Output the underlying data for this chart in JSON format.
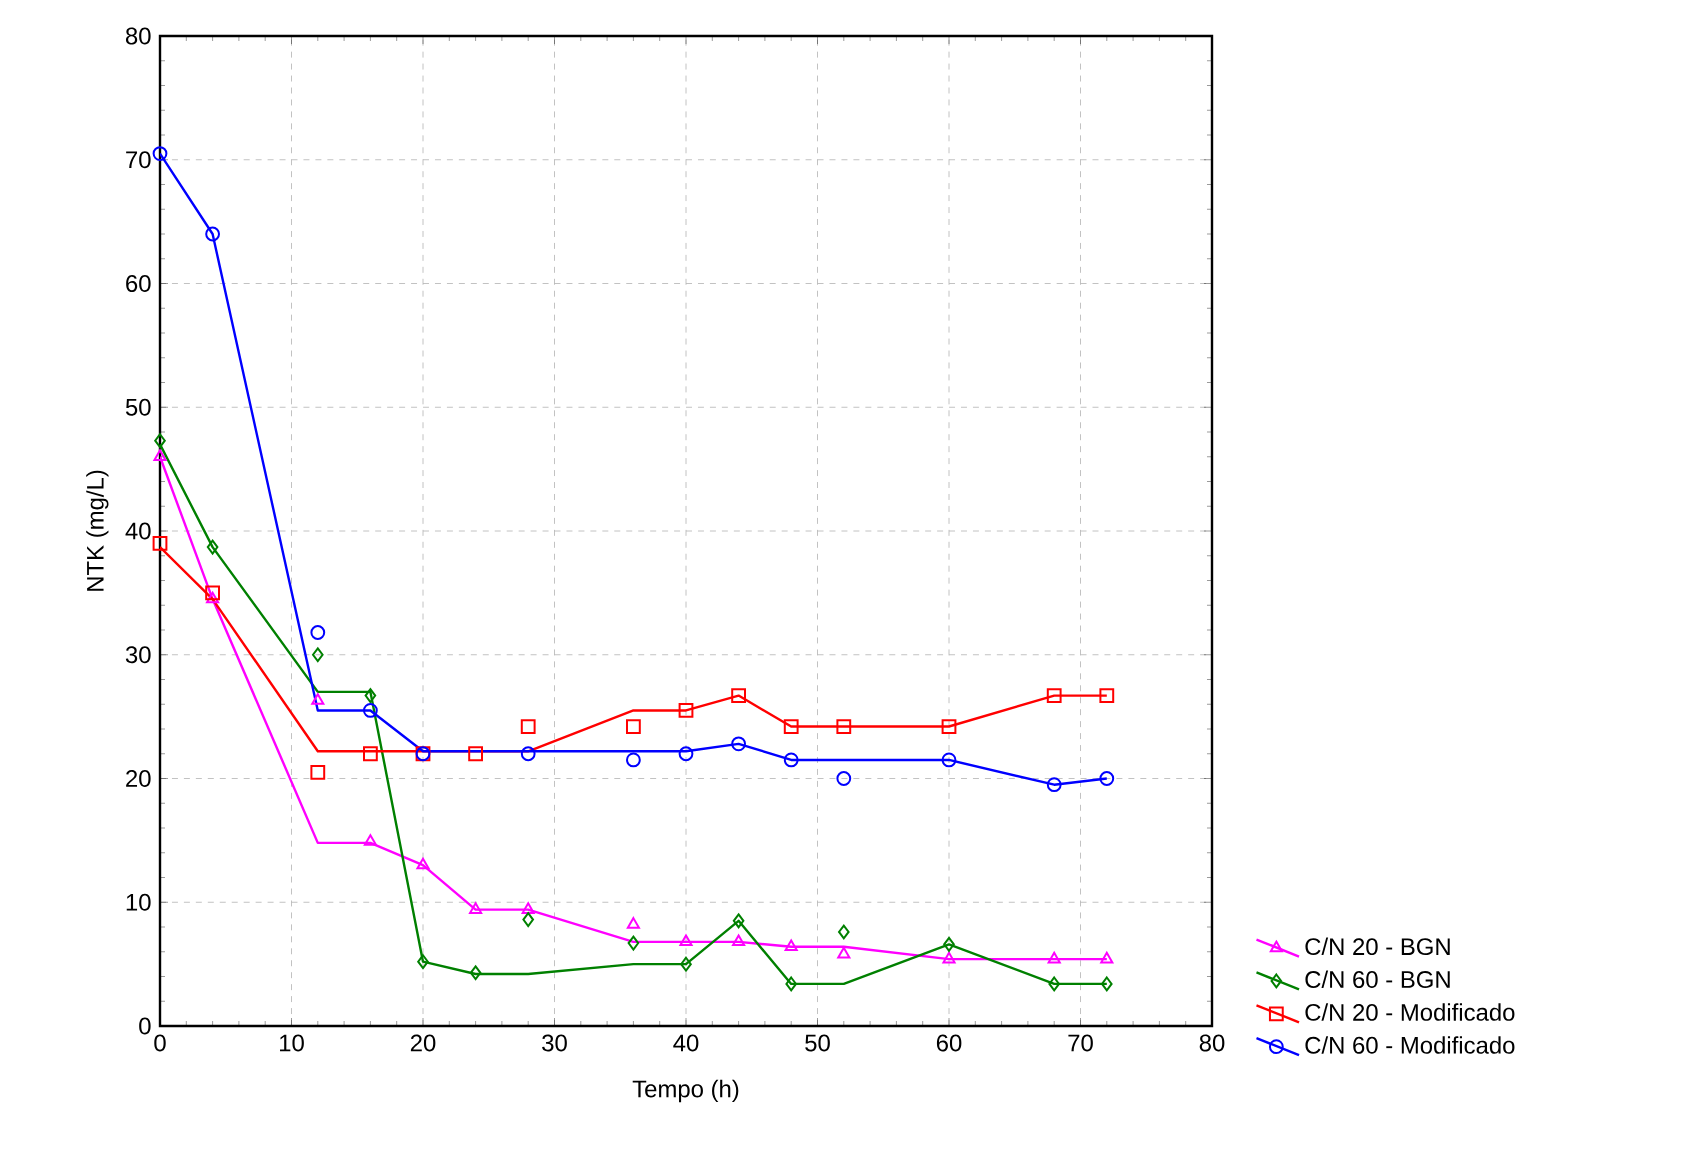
{
  "chart_data": {
    "type": "scatter",
    "xlabel": "Tempo (h)",
    "ylabel": "NTK (mg/L)",
    "xlim": [
      0,
      80
    ],
    "ylim": [
      0,
      80
    ],
    "xticks": [
      0,
      10,
      20,
      30,
      40,
      50,
      60,
      70,
      80
    ],
    "yticks": [
      0,
      10,
      20,
      30,
      40,
      50,
      60,
      70,
      80
    ],
    "grid": true,
    "legend": "right",
    "series": [
      {
        "name": "C/N 20 - BGN",
        "marker": "triangle",
        "color": "#ff00ff",
        "x": [
          0,
          4,
          12,
          16,
          20,
          24,
          28,
          36,
          40,
          44,
          48,
          52,
          60,
          68,
          72
        ],
        "values": [
          46,
          34.5,
          26.3,
          14.9,
          13,
          9.4,
          9.4,
          8.2,
          6.8,
          6.8,
          6.4,
          5.8,
          5.4,
          5.4,
          5.4
        ]
      },
      {
        "name": "C/N 60 - BGN",
        "marker": "diamond",
        "color": "#008000",
        "x": [
          0,
          4,
          12,
          16,
          20,
          24,
          28,
          36,
          40,
          44,
          48,
          52,
          60,
          68,
          72
        ],
        "values": [
          47.3,
          38.7,
          30,
          26.7,
          5.2,
          4.3,
          8.6,
          6.7,
          5,
          8.5,
          3.4,
          7.6,
          6.6,
          3.4,
          3.4
        ]
      },
      {
        "name": "C/N 20 - Modificado",
        "marker": "square",
        "color": "#ff0000",
        "x": [
          0,
          4,
          12,
          16,
          20,
          24,
          28,
          36,
          40,
          44,
          48,
          52,
          60,
          68,
          72
        ],
        "values": [
          39,
          35,
          20.5,
          22,
          22,
          22,
          24.2,
          24.2,
          25.5,
          26.7,
          24.2,
          24.2,
          24.2,
          26.7,
          26.7
        ]
      },
      {
        "name": "C/N 60 - Modificado",
        "marker": "circle",
        "color": "#0000ff",
        "x": [
          0,
          4,
          12,
          16,
          20,
          28,
          36,
          40,
          44,
          48,
          52,
          60,
          68,
          72
        ],
        "values": [
          70.5,
          64,
          31.8,
          25.5,
          22,
          22,
          21.5,
          22,
          22.8,
          21.5,
          20,
          21.5,
          19.5,
          20
        ]
      },
      {
        "type": "line",
        "marker": "none",
        "line_style": "solid",
        "color": "#ff00ff",
        "x": [
          0,
          4,
          12,
          16,
          20,
          24,
          28,
          36,
          40,
          44,
          48,
          52,
          60,
          68,
          72
        ],
        "values": [
          46,
          34.5,
          14.8,
          14.8,
          13,
          9.4,
          9.4,
          6.8,
          6.8,
          6.8,
          6.4,
          6.4,
          5.4,
          5.4,
          5.4
        ]
      },
      {
        "type": "line",
        "marker": "none",
        "line_style": "solid",
        "color": "#008000",
        "x": [
          0,
          4,
          12,
          16,
          20,
          24,
          28,
          36,
          40,
          44,
          48,
          52,
          60,
          68,
          72
        ],
        "values": [
          47,
          38.7,
          27,
          27,
          5.2,
          4.2,
          4.2,
          5,
          5,
          8.5,
          3.4,
          3.4,
          6.6,
          3.4,
          3.4
        ]
      },
      {
        "type": "line",
        "marker": "none",
        "line_style": "solid",
        "color": "#ff0000",
        "x": [
          0,
          4,
          12,
          16,
          20,
          24,
          28,
          36,
          40,
          44,
          48,
          52,
          60,
          68,
          72
        ],
        "values": [
          38.7,
          34.5,
          22.2,
          22.2,
          22.2,
          22.2,
          22.2,
          25.5,
          25.5,
          26.7,
          24.2,
          24.2,
          24.2,
          26.7,
          26.7
        ]
      },
      {
        "type": "line",
        "marker": "none",
        "line_style": "solid",
        "color": "#0000ff",
        "x": [
          0,
          4,
          12,
          16,
          20,
          24,
          28,
          36,
          40,
          44,
          48,
          52,
          60,
          68,
          72
        ],
        "values": [
          70.5,
          64,
          25.5,
          25.5,
          22.2,
          22.2,
          22.2,
          22.2,
          22.2,
          22.8,
          21.5,
          21.5,
          21.5,
          19.5,
          20
        ]
      }
    ]
  }
}
